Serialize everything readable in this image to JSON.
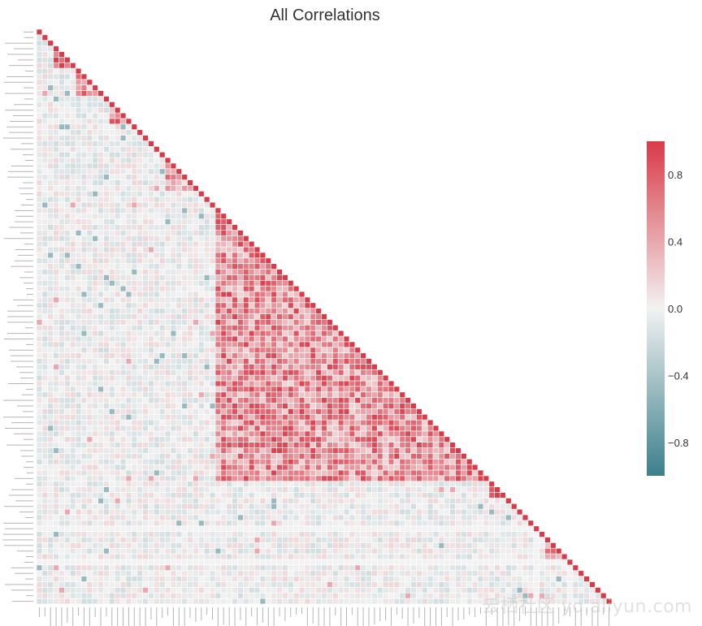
{
  "chart_data": {
    "type": "heatmap",
    "title": "All Correlations",
    "n_variables": 103,
    "value_range": [
      -1,
      1
    ],
    "colormap": {
      "negative": "#3d7f8c",
      "neutral": "#f2f2f2",
      "positive": "#d93a48"
    },
    "colorbar": {
      "ticks": [
        0.8,
        0.4,
        0.0,
        -0.4,
        -0.8
      ],
      "tick_labels": [
        "0.8",
        "0.4",
        "0.0",
        "−0.4",
        "−0.8"
      ]
    },
    "groups": [
      {
        "start": 3,
        "end": 6,
        "value": 0.95
      },
      {
        "start": 7,
        "end": 11,
        "value": 0.45
      },
      {
        "start": 13,
        "end": 16,
        "value": 0.55
      },
      {
        "start": 23,
        "end": 28,
        "value": 0.35
      },
      {
        "start": 32,
        "end": 80,
        "value": 0.55
      },
      {
        "start": 81,
        "end": 83,
        "value": 0.9
      },
      {
        "start": 91,
        "end": 94,
        "value": 0.5
      }
    ],
    "isolated": [
      89,
      95
    ]
  },
  "watermark": "云栖社区 yq.aliyun.com"
}
